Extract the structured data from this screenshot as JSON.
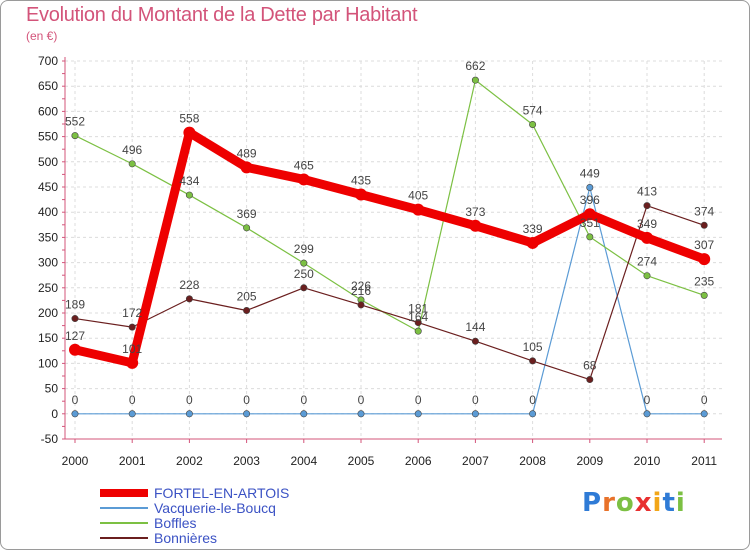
{
  "header": {
    "title": "Evolution du Montant de la Dette par Habitant",
    "unit": "(en €)"
  },
  "logo": {
    "text": "Proxiti",
    "letters": [
      "P",
      "r",
      "o",
      "x",
      "i",
      "t",
      "i"
    ],
    "colors": [
      "#2f7bd6",
      "#e8722a",
      "#7cc043",
      "#e83030",
      "#f2a618",
      "#2f7bd6",
      "#7cc043"
    ]
  },
  "chart_data": {
    "type": "line",
    "title": "Evolution du Montant de la Dette par Habitant",
    "ylabel": "(en €)",
    "xlabel": "",
    "ylim": [
      -50,
      700
    ],
    "yticks": [
      -50,
      0,
      50,
      100,
      150,
      200,
      250,
      300,
      350,
      400,
      450,
      500,
      550,
      600,
      650,
      700
    ],
    "grid": true,
    "legend_position": "bottom-left",
    "categories": [
      "2000",
      "2001",
      "2002",
      "2003",
      "2004",
      "2005",
      "2006",
      "2007",
      "2008",
      "2009",
      "2010",
      "2011"
    ],
    "series": [
      {
        "name": "FORTEL-EN-ARTOIS",
        "color": "#ee0000",
        "values": [
          127,
          101,
          558,
          489,
          465,
          435,
          405,
          373,
          339,
          396,
          349,
          307
        ]
      },
      {
        "name": "Vacquerie-le-Boucq",
        "color": "#5b9bd5",
        "values": [
          0,
          0,
          0,
          0,
          0,
          0,
          0,
          0,
          0,
          449,
          0,
          0
        ]
      },
      {
        "name": "Boffles",
        "color": "#7cc043",
        "values": [
          552,
          496,
          434,
          369,
          299,
          226,
          164,
          662,
          574,
          351,
          274,
          235
        ]
      },
      {
        "name": "Bonnières",
        "color": "#6b1f1f",
        "values": [
          189,
          172,
          228,
          205,
          250,
          216,
          181,
          144,
          105,
          68,
          413,
          374
        ]
      }
    ]
  }
}
